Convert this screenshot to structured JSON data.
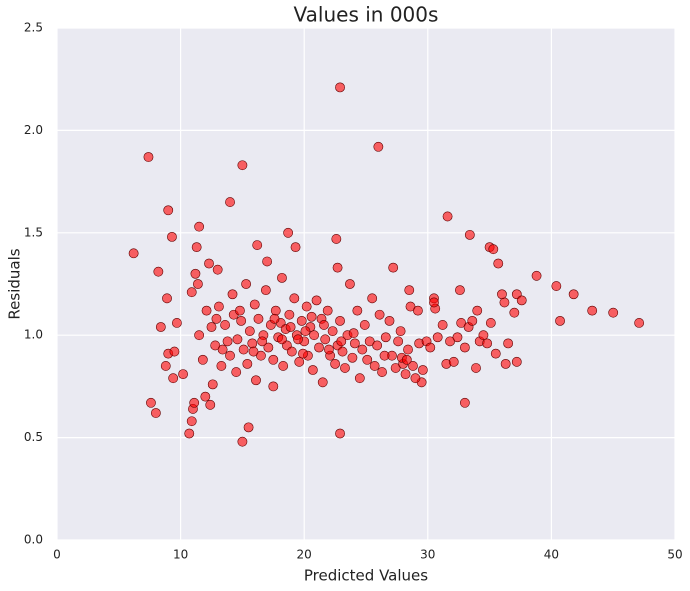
{
  "chart_data": {
    "type": "scatter",
    "title": "Values in 000s",
    "x_label": "Predicted Values",
    "y_label": "Residuals",
    "color": "#ff0000",
    "edgecolor": "#600000",
    "grid": true,
    "xlim": [
      0,
      50
    ],
    "xticks": [
      0,
      10,
      20,
      30,
      40,
      50
    ],
    "ylim": [
      0,
      2.5
    ],
    "yticks": [
      {
        "value": 0,
        "label": "0.0"
      },
      0.5,
      {
        "value": 1,
        "label": "1.0"
      },
      1.5,
      {
        "value": 2,
        "label": "2.0"
      },
      2.5
    ],
    "x": [
      6.2,
      7.4,
      7.6,
      8.0,
      8.2,
      8.4,
      8.8,
      8.9,
      9.0,
      9.0,
      9.3,
      9.4,
      9.5,
      9.7,
      10.2,
      10.7,
      10.9,
      11.0,
      11.1,
      10.9,
      11.2,
      11.3,
      11.5,
      11.4,
      12.0,
      12.3,
      12.4,
      12.6,
      13.0,
      14.0,
      14.3,
      15.0,
      15.0,
      15.5,
      16.2,
      17.0,
      17.5,
      18.2,
      18.7,
      19.3,
      22.6,
      22.7,
      22.9,
      22.9,
      26.0,
      27.2,
      28.5,
      29.5,
      30.5,
      30.6,
      31.6,
      32.6,
      33.0,
      33.4,
      34.0,
      35.0,
      35.3,
      35.7,
      36.2,
      36.5,
      37.2,
      37.2,
      37.6,
      38.8,
      40.4,
      40.7,
      41.8,
      43.3,
      45.0,
      47.1,
      11.5,
      11.8,
      12.1,
      12.5,
      12.8,
      13.1,
      13.3,
      13.6,
      13.8,
      14.0,
      14.2,
      14.5,
      14.6,
      14.9,
      15.1,
      15.3,
      15.4,
      15.6,
      15.8,
      16.0,
      16.1,
      16.3,
      16.5,
      16.7,
      16.9,
      17.1,
      17.3,
      17.5,
      17.7,
      17.9,
      18.1,
      18.3,
      18.5,
      18.6,
      18.8,
      19.0,
      19.2,
      19.4,
      19.6,
      19.8,
      20.0,
      20.2,
      20.3,
      20.5,
      20.7,
      20.8,
      21.0,
      21.2,
      21.4,
      21.5,
      21.7,
      21.9,
      22.1,
      22.3,
      22.5,
      22.7,
      22.9,
      23.1,
      23.3,
      23.5,
      23.7,
      23.9,
      24.1,
      24.3,
      24.5,
      24.7,
      24.9,
      25.1,
      25.3,
      25.5,
      25.7,
      25.9,
      26.1,
      26.3,
      26.6,
      26.9,
      27.1,
      27.4,
      27.6,
      27.8,
      28.0,
      28.2,
      28.4,
      28.6,
      28.8,
      29.0,
      29.3,
      29.6,
      29.9,
      30.2,
      30.5,
      30.8,
      31.2,
      31.5,
      31.8,
      32.1,
      32.4,
      32.7,
      33.0,
      33.3,
      33.6,
      33.9,
      34.2,
      34.5,
      34.8,
      35.1,
      35.5,
      36.0,
      36.3,
      37.0,
      20.1,
      19.5,
      18.9,
      21.6,
      22.0,
      23.0,
      24.0,
      19.9,
      20.6,
      18.2,
      17.6,
      16.6,
      15.9,
      14.8,
      13.4,
      12.9,
      26.5,
      27.9,
      28.3,
      29.2
    ],
    "values": [
      1.4,
      1.87,
      0.67,
      0.62,
      1.31,
      1.04,
      0.85,
      1.18,
      1.61,
      0.91,
      1.48,
      0.79,
      0.92,
      1.06,
      0.81,
      0.52,
      0.58,
      0.64,
      0.67,
      1.21,
      1.3,
      1.43,
      1.53,
      1.25,
      0.7,
      1.35,
      0.66,
      0.76,
      1.32,
      1.65,
      1.1,
      1.83,
      0.48,
      0.55,
      1.44,
      1.36,
      0.75,
      1.28,
      1.5,
      1.43,
      1.47,
      1.33,
      2.21,
      0.52,
      1.92,
      1.33,
      1.22,
      0.77,
      1.18,
      1.13,
      1.58,
      1.22,
      0.67,
      1.49,
      1.12,
      1.43,
      1.42,
      1.35,
      1.16,
      0.96,
      1.2,
      0.87,
      1.17,
      1.29,
      1.24,
      1.07,
      1.2,
      1.12,
      1.11,
      1.06,
      1.0,
      0.88,
      1.12,
      1.04,
      0.95,
      1.14,
      0.85,
      1.05,
      0.97,
      0.9,
      1.2,
      0.82,
      0.98,
      1.07,
      0.93,
      1.25,
      0.86,
      1.02,
      0.96,
      1.15,
      0.78,
      1.08,
      0.9,
      1.0,
      1.22,
      0.94,
      1.05,
      0.88,
      1.12,
      0.99,
      1.06,
      0.85,
      1.03,
      0.95,
      1.1,
      0.92,
      1.18,
      1.0,
      0.87,
      1.07,
      0.97,
      1.14,
      0.9,
      1.04,
      0.83,
      1.0,
      1.17,
      0.94,
      1.08,
      0.77,
      0.98,
      1.12,
      0.9,
      1.02,
      0.86,
      0.95,
      1.07,
      0.92,
      0.84,
      1.0,
      1.25,
      0.89,
      0.96,
      1.12,
      0.79,
      0.93,
      1.05,
      0.88,
      0.97,
      1.18,
      0.85,
      0.95,
      1.1,
      0.82,
      0.99,
      1.07,
      0.9,
      0.84,
      0.97,
      1.02,
      0.86,
      0.81,
      0.93,
      1.14,
      0.85,
      0.79,
      0.96,
      0.83,
      0.97,
      0.94,
      1.16,
      0.99,
      1.05,
      0.86,
      0.97,
      0.87,
      0.99,
      1.06,
      0.94,
      1.04,
      1.07,
      0.84,
      0.97,
      1.0,
      0.96,
      1.06,
      0.91,
      1.2,
      0.86,
      1.11,
      1.02,
      0.98,
      1.04,
      1.05,
      0.93,
      0.97,
      1.01,
      0.91,
      1.09,
      0.98,
      1.08,
      0.97,
      0.92,
      1.12,
      0.93,
      1.08,
      0.9,
      0.89,
      0.88,
      1.12
    ]
  }
}
